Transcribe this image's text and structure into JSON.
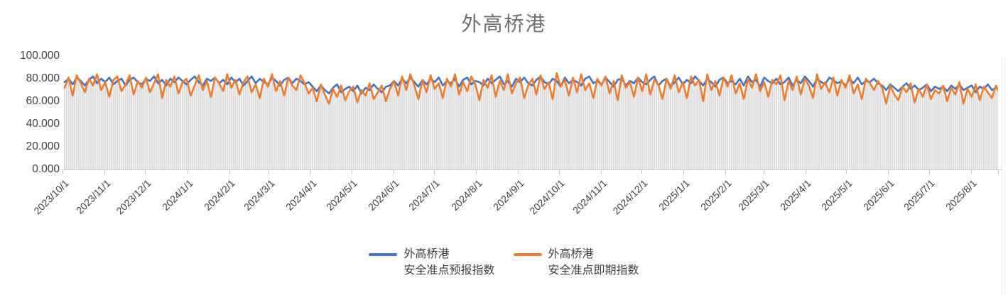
{
  "title": "外高桥港",
  "colors": {
    "series_forecast": "#4472C4",
    "series_spot": "#ED7D31",
    "background_bars": "#D9D9D9",
    "axis_line": "#C9C9C9",
    "axis_text": "#404040",
    "title_text": "#6F6F6F"
  },
  "chart_data": {
    "type": "line",
    "title": "外高桥港",
    "legend_position": "bottom",
    "grid": "none",
    "y_axis": {
      "min": 0,
      "max": 100,
      "tick_interval": 20,
      "tick_labels": [
        "0.000",
        "20.000",
        "40.000",
        "60.000",
        "80.000",
        "100.000"
      ]
    },
    "x_axis": {
      "tick_labels": [
        "2023/10/1",
        "2023/11/1",
        "2023/12/1",
        "2024/1/1",
        "2024/2/1",
        "2024/3/1",
        "2024/4/1",
        "2024/5/1",
        "2024/6/1",
        "2024/7/1",
        "2024/8/1",
        "2024/9/1",
        "2024/10/1",
        "2024/11/1",
        "2024/12/1",
        "2025/1/1",
        "2025/2/1",
        "2025/3/1",
        "2025/4/1",
        "2025/5/1",
        "2025/6/1",
        "2025/7/1",
        "2025/8/1"
      ],
      "tick_day_offsets": [
        0,
        31,
        61,
        92,
        123,
        152,
        183,
        213,
        244,
        274,
        305,
        336,
        366,
        397,
        427,
        458,
        489,
        517,
        548,
        578,
        609,
        639,
        670
      ],
      "total_days": 690,
      "sample_step_days": 3
    },
    "background_bars": {
      "color": "#D9D9D9",
      "follows_series": "外高桥港 安全准点即期指数"
    },
    "series": [
      {
        "name": "外高桥港\n安全准点预报指数",
        "color": "#4472C4",
        "values": [
          77,
          80,
          75,
          81,
          78,
          74,
          79,
          82,
          76,
          80,
          77,
          81,
          75,
          78,
          80,
          74,
          79,
          81,
          77,
          75,
          80,
          78,
          82,
          76,
          79,
          74,
          80,
          77,
          81,
          78,
          75,
          79,
          82,
          77,
          74,
          80,
          78,
          81,
          76,
          79,
          75,
          81,
          77,
          80,
          74,
          78,
          82,
          76,
          80,
          77,
          75,
          81,
          78,
          74,
          79,
          81,
          76,
          80,
          78,
          75,
          77,
          73,
          69,
          74,
          70,
          67,
          72,
          75,
          68,
          71,
          73,
          69,
          74,
          67,
          72,
          70,
          75,
          71,
          68,
          73,
          74,
          78,
          74,
          80,
          76,
          81,
          77,
          73,
          79,
          75,
          80,
          77,
          81,
          74,
          78,
          76,
          80,
          73,
          79,
          81,
          75,
          78,
          77,
          74,
          80,
          76,
          79,
          82,
          75,
          78,
          73,
          80,
          77,
          81,
          76,
          74,
          79,
          82,
          77,
          75,
          80,
          78,
          73,
          81,
          76,
          79,
          77,
          74,
          80,
          82,
          76,
          78,
          75,
          81,
          77,
          73,
          79,
          80,
          74,
          78,
          76,
          81,
          77,
          75,
          79,
          82,
          74,
          78,
          80,
          73,
          77,
          81,
          75,
          79,
          76,
          82,
          78,
          74,
          80,
          77,
          73,
          79,
          81,
          76,
          78,
          75,
          80,
          74,
          82,
          77,
          79,
          73,
          81,
          78,
          76,
          80,
          75,
          77,
          81,
          74,
          79,
          76,
          82,
          78,
          73,
          80,
          77,
          75,
          81,
          79,
          76,
          78,
          74,
          80,
          76,
          81,
          75,
          78,
          77,
          80,
          76,
          74,
          70,
          75,
          72,
          69,
          73,
          76,
          71,
          74,
          70,
          72,
          75,
          69,
          73,
          71,
          73,
          69,
          74,
          71,
          75,
          70,
          72,
          74,
          68,
          73,
          71,
          75,
          70,
          72,
          71
        ]
      },
      {
        "name": "外高桥港\n安全准点即期指数",
        "color": "#ED7D31",
        "values": [
          72,
          81,
          65,
          83,
          76,
          68,
          80,
          74,
          84,
          70,
          77,
          64,
          79,
          82,
          69,
          75,
          83,
          66,
          78,
          72,
          81,
          68,
          76,
          84,
          63,
          79,
          73,
          82,
          67,
          77,
          80,
          65,
          74,
          83,
          70,
          78,
          64,
          81,
          76,
          69,
          84,
          72,
          79,
          66,
          77,
          82,
          68,
          75,
          63,
          80,
          73,
          84,
          69,
          78,
          65,
          81,
          74,
          70,
          83,
          76,
          67,
          72,
          60,
          75,
          66,
          58,
          71,
          64,
          74,
          61,
          69,
          73,
          59,
          70,
          65,
          76,
          62,
          68,
          74,
          60,
          71,
          78,
          65,
          82,
          70,
          84,
          74,
          62,
          79,
          68,
          83,
          71,
          76,
          63,
          80,
          73,
          84,
          66,
          77,
          69,
          82,
          75,
          61,
          79,
          72,
          83,
          64,
          78,
          70,
          84,
          67,
          76,
          81,
          63,
          74,
          80,
          66,
          83,
          71,
          77,
          62,
          85,
          73,
          79,
          65,
          81,
          68,
          84,
          70,
          76,
          63,
          80,
          74,
          82,
          67,
          78,
          61,
          83,
          72,
          77,
          64,
          81,
          69,
          84,
          66,
          79,
          75,
          62,
          80,
          71,
          83,
          68,
          77,
          63,
          82,
          74,
          79,
          60,
          84,
          70,
          78,
          65,
          81,
          73,
          83,
          67,
          76,
          62,
          80,
          72,
          84,
          69,
          77,
          64,
          79,
          75,
          83,
          61,
          78,
          70,
          82,
          66,
          80,
          74,
          63,
          84,
          71,
          77,
          68,
          81,
          65,
          79,
          72,
          83,
          67,
          75,
          62,
          80,
          76,
          70,
          78,
          72,
          58,
          74,
          66,
          61,
          73,
          68,
          76,
          59,
          71,
          64,
          75,
          62,
          70,
          67,
          74,
          60,
          72,
          66,
          77,
          58,
          71,
          64,
          75,
          61,
          73,
          68,
          63,
          74,
          66
        ]
      }
    ]
  },
  "legend": {
    "items": [
      {
        "label": "外高桥港\n安全准点预报指数",
        "color": "#4472C4"
      },
      {
        "label": "外高桥港\n安全准点即期指数",
        "color": "#ED7D31"
      }
    ]
  }
}
